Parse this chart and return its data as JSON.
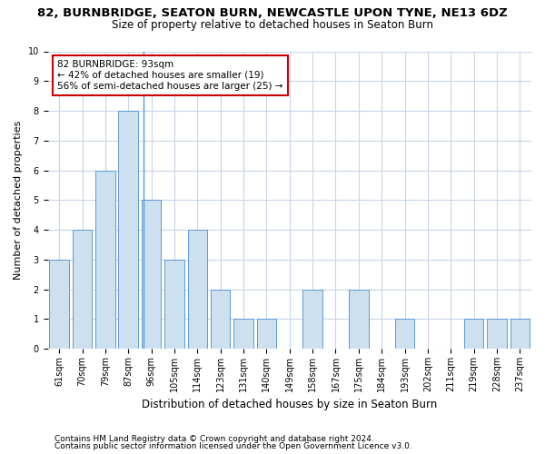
{
  "title": "82, BURNBRIDGE, SEATON BURN, NEWCASTLE UPON TYNE, NE13 6DZ",
  "subtitle": "Size of property relative to detached houses in Seaton Burn",
  "xlabel": "Distribution of detached houses by size in Seaton Burn",
  "ylabel": "Number of detached properties",
  "categories": [
    "61sqm",
    "70sqm",
    "79sqm",
    "87sqm",
    "96sqm",
    "105sqm",
    "114sqm",
    "123sqm",
    "131sqm",
    "140sqm",
    "149sqm",
    "158sqm",
    "167sqm",
    "175sqm",
    "184sqm",
    "193sqm",
    "202sqm",
    "211sqm",
    "219sqm",
    "228sqm",
    "237sqm"
  ],
  "values": [
    3,
    4,
    6,
    8,
    5,
    3,
    4,
    2,
    1,
    1,
    0,
    2,
    0,
    2,
    0,
    1,
    0,
    0,
    1,
    1,
    1
  ],
  "bar_color": "#cde0f0",
  "bar_edge_color": "#5b9bd5",
  "annotation_title": "82 BURNBRIDGE: 93sqm",
  "annotation_line1": "← 42% of detached houses are smaller (19)",
  "annotation_line2": "56% of semi-detached houses are larger (25) →",
  "annotation_box_color": "#ffffff",
  "annotation_border_color": "#cc0000",
  "ylim": [
    0,
    10
  ],
  "yticks": [
    0,
    1,
    2,
    3,
    4,
    5,
    6,
    7,
    8,
    9,
    10
  ],
  "footer1": "Contains HM Land Registry data © Crown copyright and database right 2024.",
  "footer2": "Contains public sector information licensed under the Open Government Licence v3.0.",
  "bg_color": "#ffffff",
  "grid_color": "#c8d4e8",
  "title_fontsize": 9.5,
  "subtitle_fontsize": 8.5,
  "xlabel_fontsize": 8.5,
  "ylabel_fontsize": 8,
  "tick_fontsize": 7,
  "annotation_fontsize": 7.5,
  "footer_fontsize": 6.5,
  "bar_width": 0.85
}
